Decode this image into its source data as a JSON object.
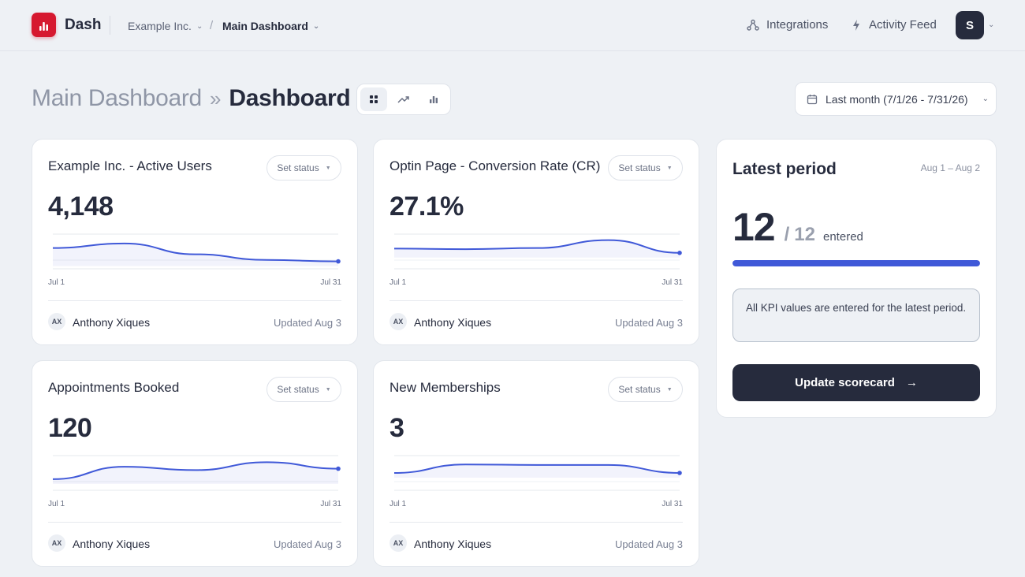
{
  "nav": {
    "brand": "Dash",
    "org_label": "Example Inc.",
    "dashboard_label": "Main Dashboard",
    "integrations_label": "Integrations",
    "activity_label": "Activity Feed",
    "avatar_initial": "S"
  },
  "header": {
    "parent": "Main Dashboard",
    "separator": "»",
    "current": "Dashboard",
    "date_range": "Last month (7/1/26 - 7/31/26)",
    "active_view": "grid"
  },
  "kpis": [
    {
      "title": "Example Inc. - Active Users",
      "status_label": "Set status",
      "value": "4,148",
      "x_start": "Jul 1",
      "x_end": "Jul 31",
      "owner_initials": "AX",
      "owner_name": "Anthony Xiques",
      "updated": "Updated Aug 3",
      "trend": [
        0.62,
        0.78,
        0.4,
        0.2,
        0.15
      ]
    },
    {
      "title": "Optin Page - Conversion Rate (CR)",
      "status_label": "Set status",
      "value": "27.1%",
      "x_start": "Jul 1",
      "x_end": "Jul 31",
      "owner_initials": "AX",
      "owner_name": "Anthony Xiques",
      "updated": "Updated Aug 3",
      "trend": [
        0.6,
        0.58,
        0.62,
        0.9,
        0.45
      ]
    },
    {
      "title": "Appointments Booked",
      "status_label": "Set status",
      "value": "120",
      "x_start": "Jul 1",
      "x_end": "Jul 31",
      "owner_initials": "AX",
      "owner_name": "Anthony Xiques",
      "updated": "Updated Aug 3",
      "trend": [
        0.28,
        0.72,
        0.6,
        0.88,
        0.65
      ]
    },
    {
      "title": "New Memberships",
      "status_label": "Set status",
      "value": "3",
      "x_start": "Jul 1",
      "x_end": "Jul 31",
      "owner_initials": "AX",
      "owner_name": "Anthony Xiques",
      "updated": "Updated Aug 3",
      "trend": [
        0.5,
        0.8,
        0.78,
        0.78,
        0.5
      ]
    }
  ],
  "latest_period": {
    "title": "Latest period",
    "range": "Aug 1 – Aug 2",
    "entered": "12",
    "separator": "/",
    "total": "12",
    "entered_label": "entered",
    "progress": 1.0,
    "notice": "All KPI values are entered for the latest period.",
    "button_label": "Update scorecard",
    "button_arrow": "→"
  },
  "colors": {
    "accent": "#4059d8",
    "dark": "#262b3d",
    "brand": "#d6182f",
    "background": "#eef1f5"
  }
}
